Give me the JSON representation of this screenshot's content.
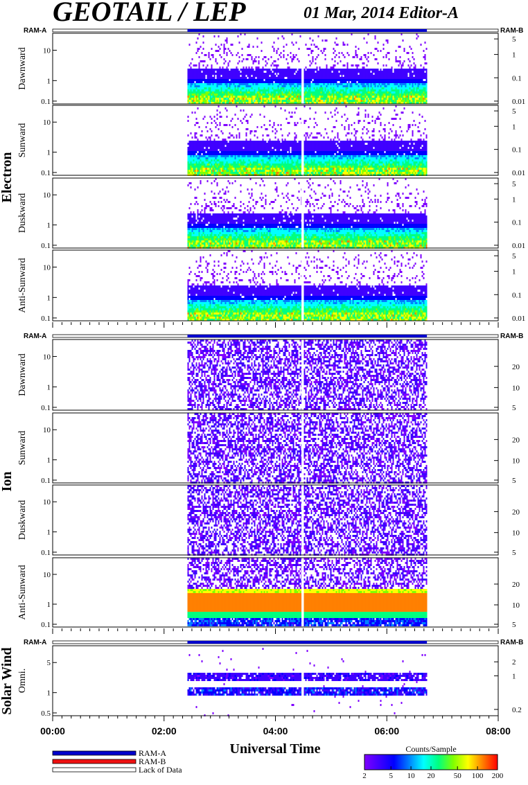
{
  "header": {
    "title": "GEOTAIL / LEP",
    "date_editor": "01 Mar, 2014   Editor-A"
  },
  "chart_data": {
    "type": "heatmap",
    "xlabel": "Universal Time",
    "x_ticks": [
      "00:00",
      "02:00",
      "04:00",
      "06:00",
      "08:00"
    ],
    "xlim_hours": [
      0,
      8
    ],
    "data_coverage_hours": [
      2.42,
      6.72
    ],
    "data_gap_hour": 4.48,
    "ram_labels": {
      "left": "RAM-A",
      "right": "RAM-B"
    },
    "groups": [
      {
        "name": "Electron",
        "ram_bar": "RAM-A",
        "panels": [
          {
            "name": "Dawnward",
            "left_ticks": [
              "10",
              "1",
              "0.1"
            ],
            "right_ticks": [
              "5",
              "1",
              "0.1",
              "0.01"
            ]
          },
          {
            "name": "Sunward",
            "left_ticks": [
              "10",
              "1",
              "0.1"
            ],
            "right_ticks": [
              "5",
              "1",
              "0.1",
              "0.01"
            ]
          },
          {
            "name": "Duskward",
            "left_ticks": [
              "10",
              "1",
              "0.1"
            ],
            "right_ticks": [
              "5",
              "1",
              "0.1",
              "0.01"
            ]
          },
          {
            "name": "Anti-Sunward",
            "left_ticks": [
              "10",
              "1",
              "0.1"
            ],
            "right_ticks": [
              "5",
              "1",
              "0.1",
              "0.01"
            ]
          }
        ]
      },
      {
        "name": "Ion",
        "ram_bar": "RAM-A",
        "panels": [
          {
            "name": "Dawnward",
            "left_ticks": [
              "10",
              "1",
              "0.1"
            ],
            "right_ticks": [
              "20",
              "10",
              "5"
            ]
          },
          {
            "name": "Sunward",
            "left_ticks": [
              "10",
              "1",
              "0.1"
            ],
            "right_ticks": [
              "20",
              "10",
              "5"
            ]
          },
          {
            "name": "Duskward",
            "left_ticks": [
              "10",
              "1",
              "0.1"
            ],
            "right_ticks": [
              "20",
              "10",
              "5"
            ]
          },
          {
            "name": "Anti-Sunward",
            "left_ticks": [
              "10",
              "1",
              "0.1"
            ],
            "right_ticks": [
              "20",
              "10",
              "5"
            ]
          }
        ]
      },
      {
        "name": "Solar Wind",
        "ram_bar": "RAM-A",
        "panels": [
          {
            "name": "Omni.",
            "left_ticks": [
              "5",
              "1",
              "0.5"
            ],
            "right_ticks": [
              "2",
              "1",
              "0.2"
            ]
          }
        ]
      }
    ],
    "legend": [
      {
        "label": "RAM-A",
        "color": "#0000cc"
      },
      {
        "label": "RAM-B",
        "color": "#ee1111"
      },
      {
        "label": "Lack of Data",
        "color": "#ffffff"
      }
    ],
    "colorbar": {
      "title": "Counts/Sample",
      "ticks": [
        "2",
        "5",
        "10",
        "20",
        "50",
        "100",
        "200"
      ],
      "colors": [
        "#7f00ff",
        "#3f00ff",
        "#0000ff",
        "#007fff",
        "#00ffff",
        "#00ff7f",
        "#7fff00",
        "#ffff00",
        "#ff7f00",
        "#ff0000"
      ]
    }
  }
}
